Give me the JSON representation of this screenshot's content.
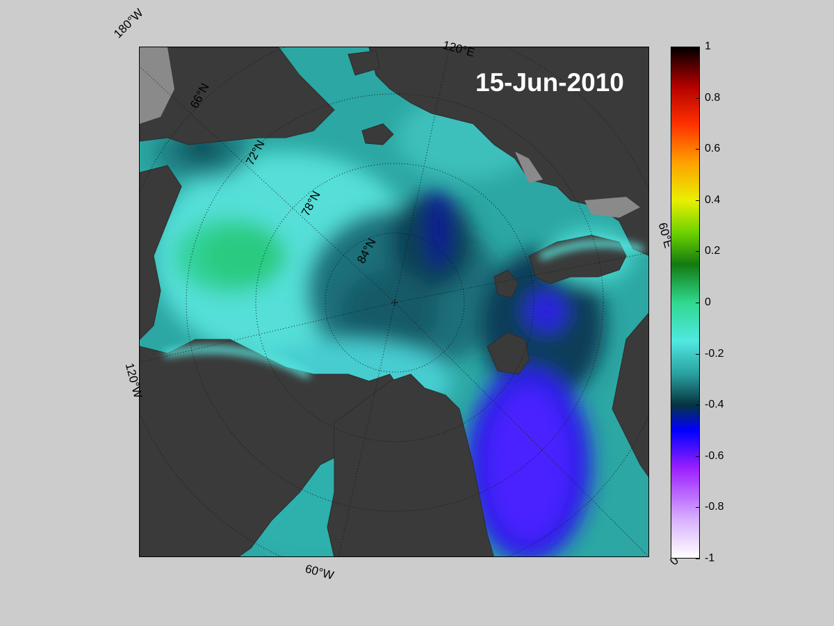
{
  "map": {
    "date_label": "15-Jun-2010",
    "projection": "north-polar-stereographic",
    "longitude_labels": [
      "180°W",
      "120°E",
      "60°E",
      "0°",
      "60°W",
      "120°W"
    ],
    "latitude_labels": [
      "66°N",
      "72°N",
      "78°N",
      "84°N"
    ],
    "colors": {
      "land": "#3a3a3a",
      "land_masked": "#8a8a8a",
      "background": "#cccccc"
    }
  },
  "colorbar": {
    "min": -1,
    "max": 1,
    "ticks": [
      "1",
      "0.8",
      "0.6",
      "0.4",
      "0.2",
      "0",
      "-0.2",
      "-0.4",
      "-0.6",
      "-0.8",
      "-1"
    ],
    "colormap_stops": [
      {
        "value": 1.0,
        "color": "#000000"
      },
      {
        "value": 0.85,
        "color": "#b00000"
      },
      {
        "value": 0.7,
        "color": "#ff3000"
      },
      {
        "value": 0.55,
        "color": "#ffa000"
      },
      {
        "value": 0.4,
        "color": "#e8f000"
      },
      {
        "value": 0.27,
        "color": "#6ad000"
      },
      {
        "value": 0.15,
        "color": "#137a10"
      },
      {
        "value": 0.0,
        "color": "#30d890"
      },
      {
        "value": -0.15,
        "color": "#50e8e0"
      },
      {
        "value": -0.28,
        "color": "#2aa0a0"
      },
      {
        "value": -0.4,
        "color": "#053540"
      },
      {
        "value": -0.5,
        "color": "#0000ff"
      },
      {
        "value": -0.65,
        "color": "#9b20ff"
      },
      {
        "value": -0.85,
        "color": "#d8b0ff"
      },
      {
        "value": -1.0,
        "color": "#ffffff"
      }
    ]
  }
}
